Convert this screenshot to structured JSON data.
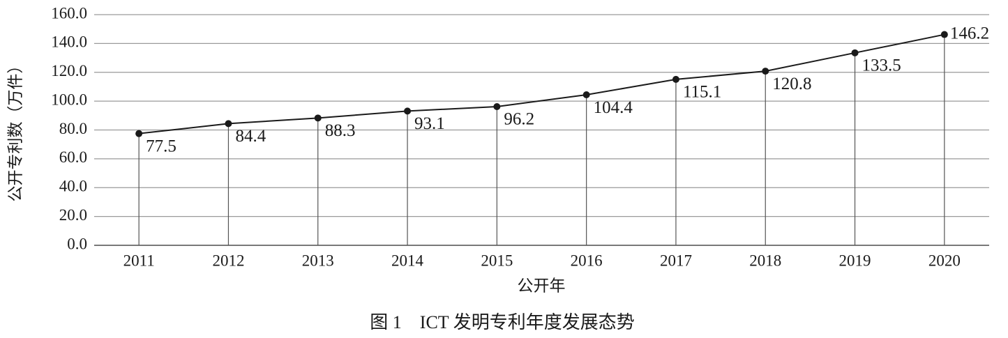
{
  "chart_data": {
    "type": "line",
    "y_label": "公开专利数（万件）",
    "x_label": "公开年",
    "caption": "图 1　ICT 发明专利年度发展态势",
    "categories": [
      "2011",
      "2012",
      "2013",
      "2014",
      "2015",
      "2016",
      "2017",
      "2018",
      "2019",
      "2020"
    ],
    "values": [
      77.5,
      84.4,
      88.3,
      93.1,
      96.2,
      104.4,
      115.1,
      120.8,
      133.5,
      146.2
    ],
    "color": "#1a1a1a",
    "ylim": [
      0,
      160
    ],
    "yticks": [
      {
        "value": 0,
        "label": "0.0"
      },
      {
        "value": 20,
        "label": "20.0"
      },
      {
        "value": 40,
        "label": "40.0"
      },
      {
        "value": 60,
        "label": "60.0"
      },
      {
        "value": 80,
        "label": "80.0"
      },
      {
        "value": 100,
        "label": "100.0"
      },
      {
        "value": 120,
        "label": "120.0"
      },
      {
        "value": 140,
        "label": "140.0"
      },
      {
        "value": 160,
        "label": "160.0"
      }
    ],
    "grid": true
  }
}
